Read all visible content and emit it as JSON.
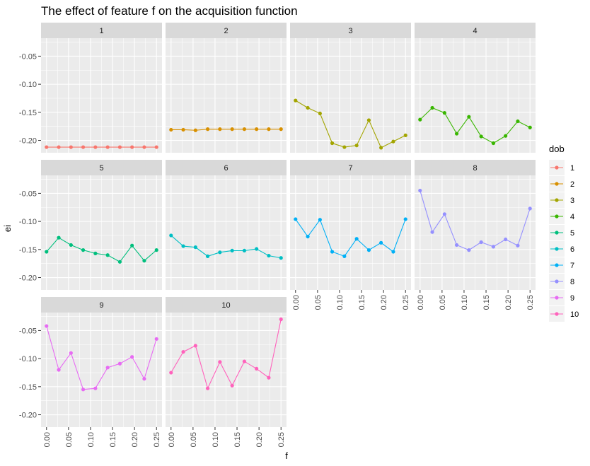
{
  "chart_data": {
    "type": "line",
    "title": "The effect of feature f on the acquisition function",
    "xlabel": "f",
    "ylabel": "ei",
    "x": [
      0.0,
      0.0278,
      0.0556,
      0.0833,
      0.1111,
      0.1389,
      0.1667,
      0.1944,
      0.2222,
      0.25
    ],
    "xticks": [
      0.0,
      0.05,
      0.1,
      0.15,
      0.2,
      0.25
    ],
    "xtick_labels": [
      "0.00",
      "0.05",
      "0.10",
      "0.15",
      "0.20",
      "0.25"
    ],
    "yticks": [
      -0.2,
      -0.15,
      -0.1,
      -0.05
    ],
    "ytick_labels": [
      "-0.20",
      "-0.15",
      "-0.10",
      "-0.05"
    ],
    "xlim": [
      -0.0125,
      0.2625
    ],
    "ylim": [
      -0.222,
      -0.018
    ],
    "facet_by": "dob",
    "legend": {
      "title": "dob",
      "position": "right"
    },
    "grid": true,
    "series": [
      {
        "name": "1",
        "color": "#F8766D",
        "values": [
          -0.212,
          -0.212,
          -0.212,
          -0.212,
          -0.212,
          -0.212,
          -0.212,
          -0.212,
          -0.212,
          -0.212
        ]
      },
      {
        "name": "2",
        "color": "#D89000",
        "values": [
          -0.181,
          -0.181,
          -0.182,
          -0.18,
          -0.18,
          -0.18,
          -0.18,
          -0.18,
          -0.18,
          -0.18
        ]
      },
      {
        "name": "3",
        "color": "#A3A500",
        "values": [
          -0.129,
          -0.142,
          -0.152,
          -0.205,
          -0.212,
          -0.209,
          -0.164,
          -0.213,
          -0.202,
          -0.191
        ]
      },
      {
        "name": "4",
        "color": "#39B600",
        "values": [
          -0.163,
          -0.142,
          -0.151,
          -0.188,
          -0.158,
          -0.193,
          -0.205,
          -0.192,
          -0.166,
          -0.177
        ]
      },
      {
        "name": "5",
        "color": "#00BF7D",
        "values": [
          -0.154,
          -0.129,
          -0.142,
          -0.151,
          -0.157,
          -0.16,
          -0.172,
          -0.143,
          -0.17,
          -0.151
        ]
      },
      {
        "name": "6",
        "color": "#00BFC4",
        "values": [
          -0.125,
          -0.144,
          -0.146,
          -0.162,
          -0.155,
          -0.152,
          -0.152,
          -0.149,
          -0.161,
          -0.165
        ]
      },
      {
        "name": "7",
        "color": "#00B0F6",
        "values": [
          -0.096,
          -0.127,
          -0.097,
          -0.154,
          -0.162,
          -0.131,
          -0.151,
          -0.138,
          -0.154,
          -0.096
        ]
      },
      {
        "name": "8",
        "color": "#9590FF",
        "values": [
          -0.045,
          -0.119,
          -0.087,
          -0.142,
          -0.151,
          -0.137,
          -0.145,
          -0.132,
          -0.143,
          -0.077
        ]
      },
      {
        "name": "9",
        "color": "#E76BF3",
        "values": [
          -0.042,
          -0.12,
          -0.09,
          -0.155,
          -0.153,
          -0.116,
          -0.109,
          -0.097,
          -0.136,
          -0.065
        ]
      },
      {
        "name": "10",
        "color": "#FF62BC",
        "values": [
          -0.125,
          -0.088,
          -0.077,
          -0.153,
          -0.106,
          -0.148,
          -0.105,
          -0.118,
          -0.134,
          -0.03
        ]
      }
    ]
  }
}
